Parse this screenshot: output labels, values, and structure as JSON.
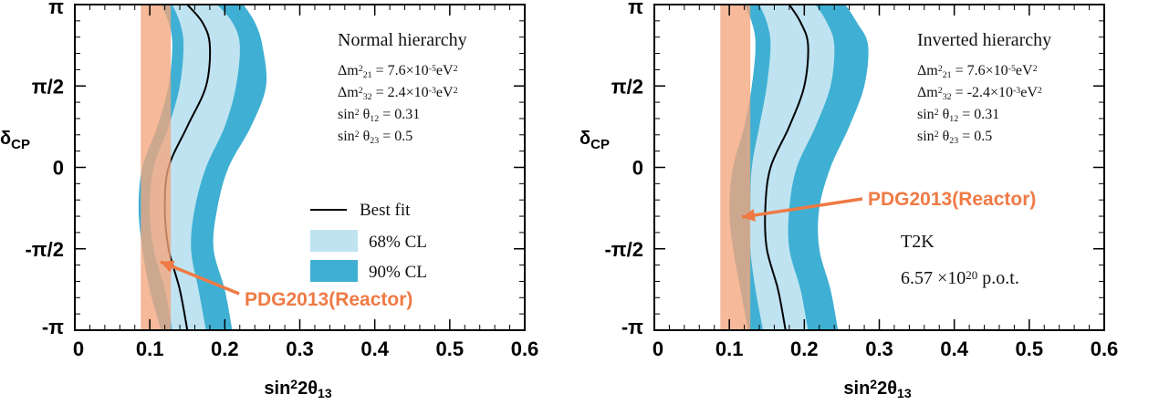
{
  "chart_data": [
    {
      "type": "area",
      "panel": "left",
      "xlabel": "sin²2θ₁₃",
      "ylabel": "δCP",
      "xlim": [
        0,
        0.6
      ],
      "ylim": [
        -3.1416,
        3.1416
      ],
      "x_ticks": [
        "0",
        "0.1",
        "0.2",
        "0.3",
        "0.4",
        "0.5",
        "0.6"
      ],
      "y_ticks": [
        "-π",
        "-π/2",
        "0",
        "π/2",
        "π"
      ],
      "hierarchy": "Normal hierarchy",
      "params": [
        "Δm²₂₁ = 7.6×10⁻⁵eV²",
        "Δm²₃₂ = 2.4×10⁻³eV²",
        "sin² θ₁₂ = 0.31",
        "sin² θ₂₃ = 0.5"
      ],
      "legend": [
        "Best fit",
        "68% CL",
        "90% CL"
      ],
      "legend_position": "lower-right",
      "reactor_band": {
        "label": "PDG2013(Reactor)",
        "x_range": [
          0.088,
          0.128
        ],
        "color": "#f4a57c"
      },
      "annotation": "PDG2013(Reactor)",
      "series": [
        {
          "name": "Best fit",
          "x": [
            0.15,
            0.14,
            0.125,
            0.12,
            0.125,
            0.15,
            0.175,
            0.18,
            0.17,
            0.15
          ],
          "y": [
            -3.14,
            -2.36,
            -1.57,
            -0.79,
            0,
            0.79,
            1.57,
            2.36,
            2.8,
            3.14
          ]
        },
        {
          "name": "68% CL",
          "x_low": [
            0.13,
            0.12,
            0.105,
            0.1,
            0.105,
            0.125,
            0.14,
            0.145,
            0.14,
            0.13
          ],
          "x_high": [
            0.175,
            0.165,
            0.155,
            0.16,
            0.175,
            0.2,
            0.215,
            0.22,
            0.21,
            0.19
          ],
          "y": [
            -3.14,
            -2.36,
            -1.57,
            -0.79,
            0,
            0.79,
            1.57,
            2.36,
            2.8,
            3.14
          ]
        },
        {
          "name": "90% CL",
          "x_low": [
            0.115,
            0.1,
            0.09,
            0.085,
            0.09,
            0.11,
            0.125,
            0.13,
            0.125,
            0.115
          ],
          "x_high": [
            0.21,
            0.2,
            0.185,
            0.19,
            0.205,
            0.235,
            0.255,
            0.25,
            0.24,
            0.225
          ],
          "y": [
            -3.14,
            -2.36,
            -1.57,
            -0.79,
            0,
            0.79,
            1.57,
            2.36,
            2.8,
            3.14
          ]
        }
      ],
      "colors": {
        "cl68": "#bfe3f1",
        "cl90": "#3fb0d3",
        "bestfit": "#000000",
        "reactor": "#f4a57c",
        "arrow": "#ef7a45"
      }
    },
    {
      "type": "area",
      "panel": "right",
      "xlabel": "sin²2θ₁₃",
      "ylabel": "δCP",
      "xlim": [
        0,
        0.6
      ],
      "ylim": [
        -3.1416,
        3.1416
      ],
      "x_ticks": [
        "0",
        "0.1",
        "0.2",
        "0.3",
        "0.4",
        "0.5",
        "0.6"
      ],
      "y_ticks": [
        "-π",
        "-π/2",
        "0",
        "π/2",
        "π"
      ],
      "hierarchy": "Inverted hierarchy",
      "params": [
        "Δm²₂₁ = 7.6×10⁻⁵eV²",
        "Δm²₃₂ = -2.4×10⁻³eV²",
        "sin² θ₁₂ = 0.31",
        "sin² θ₂₃ = 0.5"
      ],
      "experiment": "T2K",
      "exposure": "6.57×10²⁰ p.o.t.",
      "reactor_band": {
        "label": "PDG2013(Reactor)",
        "x_range": [
          0.088,
          0.128
        ],
        "color": "#f4a57c"
      },
      "annotation": "PDG2013(Reactor)",
      "series": [
        {
          "name": "Best fit",
          "x": [
            0.175,
            0.165,
            0.15,
            0.148,
            0.155,
            0.18,
            0.2,
            0.205,
            0.195,
            0.18
          ],
          "y": [
            -3.14,
            -2.36,
            -1.57,
            -0.79,
            0,
            0.79,
            1.57,
            2.36,
            2.8,
            3.14
          ]
        },
        {
          "name": "68% CL",
          "x_low": [
            0.145,
            0.135,
            0.128,
            0.128,
            0.13,
            0.14,
            0.15,
            0.155,
            0.15,
            0.14
          ],
          "x_high": [
            0.205,
            0.195,
            0.18,
            0.18,
            0.19,
            0.215,
            0.235,
            0.24,
            0.23,
            0.215
          ],
          "y": [
            -3.14,
            -2.36,
            -1.57,
            -0.79,
            0,
            0.79,
            1.57,
            2.36,
            2.8,
            3.14
          ]
        },
        {
          "name": "90% CL",
          "x_low": [
            0.125,
            0.115,
            0.105,
            0.1,
            0.105,
            0.12,
            0.13,
            0.135,
            0.13,
            0.12
          ],
          "x_high": [
            0.245,
            0.235,
            0.22,
            0.22,
            0.235,
            0.26,
            0.28,
            0.285,
            0.27,
            0.255
          ],
          "y": [
            -3.14,
            -2.36,
            -1.57,
            -0.79,
            0,
            0.79,
            1.57,
            2.36,
            2.8,
            3.14
          ]
        }
      ],
      "colors": {
        "cl68": "#bfe3f1",
        "cl90": "#3fb0d3",
        "bestfit": "#000000",
        "reactor": "#f4a57c",
        "arrow": "#ef7a45"
      }
    }
  ]
}
